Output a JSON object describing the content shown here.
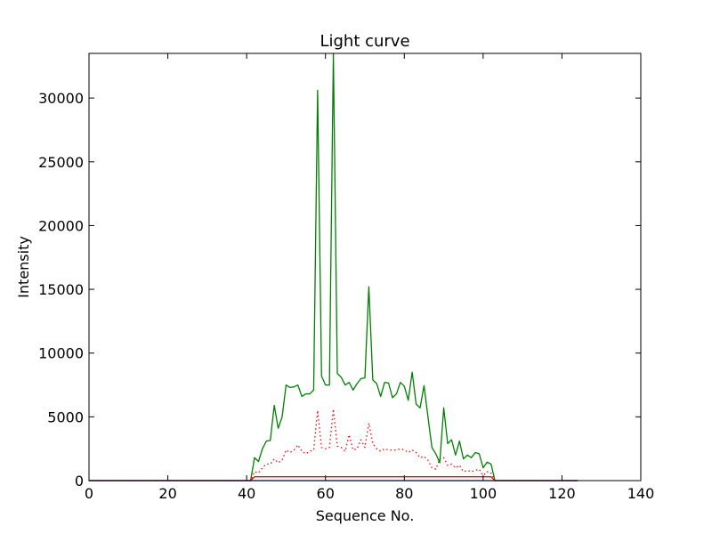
{
  "chart_data": {
    "type": "line",
    "title": "Light curve",
    "xlabel": "Sequence No.",
    "ylabel": "Intensity",
    "xlim": [
      0,
      140
    ],
    "ylim": [
      0,
      33500
    ],
    "xticks": [
      0,
      20,
      40,
      60,
      80,
      100,
      120,
      140
    ],
    "yticks": [
      0,
      5000,
      10000,
      15000,
      20000,
      25000,
      30000
    ],
    "xtick_labels": [
      "0",
      "20",
      "40",
      "60",
      "80",
      "100",
      "120",
      "140"
    ],
    "ytick_labels": [
      "0",
      "5000",
      "10000",
      "15000",
      "20000",
      "25000",
      "30000"
    ],
    "grid": false,
    "legend": "none",
    "series": [
      {
        "color": "#008000",
        "style": "solid",
        "x": [
          0,
          41,
          42,
          43,
          44,
          45,
          46,
          47,
          48,
          49,
          50,
          51,
          52,
          53,
          54,
          55,
          56,
          57,
          58,
          59,
          60,
          61,
          62,
          63,
          64,
          65,
          66,
          67,
          68,
          69,
          70,
          71,
          72,
          73,
          74,
          75,
          76,
          77,
          78,
          79,
          80,
          81,
          82,
          83,
          84,
          85,
          86,
          87,
          88,
          89,
          90,
          91,
          92,
          93,
          94,
          95,
          96,
          97,
          98,
          99,
          100,
          101,
          102,
          103,
          124
        ],
        "y": [
          0,
          0,
          1800,
          1500,
          2500,
          3100,
          3150,
          5900,
          4100,
          5000,
          7500,
          7300,
          7350,
          7500,
          6600,
          6800,
          6800,
          7100,
          30600,
          8200,
          7500,
          7500,
          33500,
          8400,
          8100,
          7500,
          7700,
          7100,
          7600,
          8000,
          8050,
          15200,
          7900,
          7600,
          6600,
          7700,
          7650,
          6500,
          6800,
          7700,
          7400,
          6300,
          8500,
          6000,
          5700,
          7450,
          5000,
          2600,
          2100,
          1400,
          5700,
          2900,
          3200,
          2000,
          3100,
          1700,
          2000,
          1800,
          2200,
          2100,
          1000,
          1450,
          1300,
          0,
          0
        ]
      },
      {
        "color": "#ff0000",
        "style": "dotted",
        "x": [
          0,
          41,
          42,
          43,
          44,
          45,
          46,
          47,
          48,
          49,
          50,
          51,
          52,
          53,
          54,
          55,
          56,
          57,
          58,
          59,
          60,
          61,
          62,
          63,
          64,
          65,
          66,
          67,
          68,
          69,
          70,
          71,
          72,
          73,
          74,
          75,
          76,
          77,
          78,
          79,
          80,
          81,
          82,
          83,
          84,
          85,
          86,
          87,
          88,
          89,
          90,
          91,
          92,
          93,
          94,
          95,
          96,
          97,
          98,
          99,
          100,
          101,
          102,
          103,
          124
        ],
        "y": [
          0,
          0,
          700,
          600,
          1000,
          1300,
          1300,
          1700,
          1400,
          1600,
          2400,
          2200,
          2400,
          2800,
          2300,
          2100,
          2300,
          2400,
          5500,
          2600,
          2500,
          2600,
          5600,
          2700,
          2600,
          2300,
          3600,
          2400,
          2500,
          3200,
          2600,
          4500,
          2900,
          2500,
          2300,
          2500,
          2400,
          2400,
          2400,
          2500,
          2400,
          2200,
          2400,
          2200,
          1800,
          1900,
          1600,
          1000,
          900,
          1700,
          1800,
          1200,
          1300,
          1000,
          1200,
          700,
          800,
          700,
          800,
          900,
          400,
          700,
          600,
          0,
          0
        ]
      },
      {
        "color": "#ff0000",
        "style": "solid",
        "x": [
          0,
          41,
          42,
          102,
          103,
          124
        ],
        "y": [
          0,
          0,
          300,
          300,
          0,
          0
        ]
      },
      {
        "color": "#0000ff",
        "style": "solid",
        "x": [
          0,
          124
        ],
        "y": [
          0,
          0
        ]
      }
    ]
  }
}
